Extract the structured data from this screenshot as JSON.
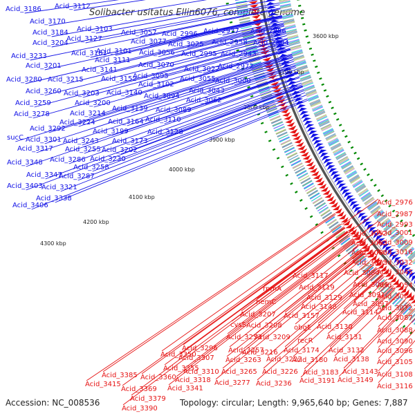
{
  "title": "Solibacter usitatus Ellin6076, complete genome",
  "accession_text": "Accession: NC_008536",
  "summary_text": "Topology: circular; Length: 9,965,640 bp; Genes: 7,887",
  "colors": {
    "forward": "#1010e6",
    "reverse": "#e61414",
    "backbone": "#555555",
    "gc_skew": "#008800"
  },
  "ruler_ticks": [
    "3600 kbp",
    "3700 kbp",
    "3800 kbp",
    "3900 kbp",
    "4000 kbp",
    "4100 kbp",
    "4200 kbp",
    "4300 kbp"
  ],
  "forward_labels": [
    "Acid_3186",
    "Acid_3112",
    "Acid_3170",
    "Acid_3103",
    "Acid_3057",
    "Acid_2996",
    "Acid_2937",
    "Acid_2886",
    "Acid_3184",
    "Acid_3127",
    "Acid_3077",
    "Acid_3025",
    "Acid_2958",
    "Acid_2904",
    "Acid_3204",
    "Acid_3161",
    "Acid_3101",
    "Acid_3056",
    "Acid_2995",
    "Acid_2943",
    "Acid_3233",
    "Acid_3111",
    "Acid_3070",
    "Acid_2972",
    "Acid_3201",
    "Acid_3141",
    "Acid_3095",
    "Acid_3022",
    "Acid_3280",
    "Acid_3215",
    "Acid_3152",
    "Acid_3102",
    "Acid_3055",
    "Acid_3000",
    "Acid_3260",
    "Acid_3203",
    "Acid_3140",
    "Acid_3094",
    "Acid_3043",
    "Acid_3259",
    "Acid_3200",
    "Acid_3139",
    "Acid_3062",
    "Acid_3278",
    "Acid_3214",
    "Acid_3089",
    "Acid_3224",
    "Acid_3164",
    "Acid_3110",
    "Acid_3292",
    "Acid_3199",
    "Acid_3128",
    "sucC",
    "Acid_3301",
    "Acid_3243",
    "Acid_3173",
    "Acid_3317",
    "Acid_3255",
    "Acid_3202",
    "Acid_3286",
    "Acid_3230",
    "Acid_3348",
    "Acid_3258",
    "Acid_3347",
    "Acid_3287",
    "Acid_3403",
    "Acid_3321",
    "Acid_3338",
    "Acid_3406"
  ],
  "reverse_labels": [
    "Acid_2976",
    "Acid_2987",
    "Acid_2993",
    "Acid_3052",
    "Acid_3001",
    "Acid_3063",
    "Acid_3009",
    "Acid_3066",
    "Acid_3016",
    "Acid_3073",
    "Acid_3032",
    "Acid_3084",
    "Acid_3045",
    "Acid_3117",
    "Acid_3086",
    "Acid_3054",
    "rpmA",
    "Acid_3119",
    "Acid_3091",
    "Acid_3064",
    "Acid_3129",
    "Acid_3097",
    "Acid_3072",
    "hemC",
    "Acid_3148",
    "Acid_3114",
    "Acid_3087",
    "Acid_3207",
    "Acid_3157",
    "Acid_3088",
    "obgE",
    "Acid_3130",
    "cysS",
    "Acid_3208",
    "Acid_3131",
    "Acid_3090",
    "Acid_3253",
    "Acid_3209",
    "recR",
    "Acid_3096",
    "Acid_3296",
    "Acid_3257",
    "Acid_3174",
    "Acid_3132",
    "Acid_3350",
    "Acid_3216",
    "Acid_3307",
    "Acid_3263",
    "Acid_3222",
    "Acid_3180",
    "Acid_3138",
    "Acid_3105",
    "Acid_3355",
    "Acid_3310",
    "Acid_3265",
    "Acid_3226",
    "Acid_3183",
    "Acid_3143",
    "Acid_3108",
    "Acid_3385",
    "Acid_3360",
    "Acid_3318",
    "Acid_3277",
    "Acid_3236",
    "Acid_3191",
    "Acid_3149",
    "Acid_3116",
    "Acid_3341",
    "Acid_3415",
    "Acid_3369",
    "Acid_3379",
    "Acid_3390"
  ]
}
